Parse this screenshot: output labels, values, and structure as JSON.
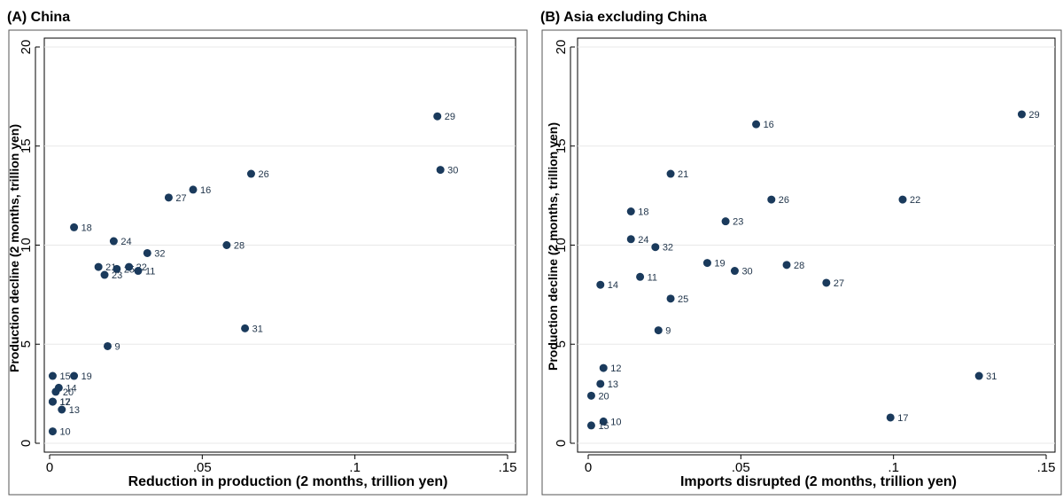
{
  "colors": {
    "marker": "#1a3a5c",
    "panel_border": "#555555",
    "gridline": "#e8e8e8",
    "text": "#000000",
    "axis": "#000000"
  },
  "chart_data": [
    {
      "type": "scatter",
      "title": "(A) China",
      "xlabel": "Reduction in production (2 months, trillion yen)",
      "ylabel": "Production decline (2 months, trillion yen)",
      "xlim": [
        0,
        0.15
      ],
      "ylim": [
        0,
        20
      ],
      "xticks": [
        0,
        0.05,
        0.1,
        0.15
      ],
      "xtick_labels": [
        "0",
        ".05",
        ".1",
        ".15"
      ],
      "yticks": [
        0,
        5,
        10,
        15,
        20
      ],
      "ytick_labels": [
        "0",
        "5",
        "10",
        "15",
        "20"
      ],
      "grid": "horizontal",
      "points": [
        {
          "label": "29",
          "x": 0.127,
          "y": 16.5
        },
        {
          "label": "30",
          "x": 0.128,
          "y": 13.8
        },
        {
          "label": "26",
          "x": 0.066,
          "y": 13.6
        },
        {
          "label": "16",
          "x": 0.047,
          "y": 12.8
        },
        {
          "label": "27",
          "x": 0.039,
          "y": 12.4
        },
        {
          "label": "18",
          "x": 0.008,
          "y": 10.9
        },
        {
          "label": "24",
          "x": 0.021,
          "y": 10.2
        },
        {
          "label": "28",
          "x": 0.058,
          "y": 10.0
        },
        {
          "label": "32",
          "x": 0.032,
          "y": 9.6
        },
        {
          "label": "21",
          "x": 0.016,
          "y": 8.9
        },
        {
          "label": "25",
          "x": 0.022,
          "y": 8.8
        },
        {
          "label": "22",
          "x": 0.026,
          "y": 8.9
        },
        {
          "label": "11",
          "x": 0.029,
          "y": 8.7
        },
        {
          "label": "23",
          "x": 0.018,
          "y": 8.5
        },
        {
          "label": "31",
          "x": 0.064,
          "y": 5.8
        },
        {
          "label": "9",
          "x": 0.019,
          "y": 4.9
        },
        {
          "label": "15",
          "x": 0.001,
          "y": 3.4
        },
        {
          "label": "19",
          "x": 0.008,
          "y": 3.4
        },
        {
          "label": "14",
          "x": 0.003,
          "y": 2.8
        },
        {
          "label": "20",
          "x": 0.002,
          "y": 2.6
        },
        {
          "label": "17",
          "x": 0.001,
          "y": 2.1
        },
        {
          "label": "12",
          "x": 0.001,
          "y": 2.1
        },
        {
          "label": "13",
          "x": 0.004,
          "y": 1.7
        },
        {
          "label": "10",
          "x": 0.001,
          "y": 0.6
        }
      ]
    },
    {
      "type": "scatter",
      "title": "(B) Asia excluding China",
      "xlabel": "Imports disrupted (2 months, trillion yen)",
      "ylabel": "Production decline (2 months, trillion yen)",
      "xlim": [
        0,
        0.15
      ],
      "ylim": [
        0,
        20
      ],
      "xticks": [
        0,
        0.05,
        0.1,
        0.15
      ],
      "xtick_labels": [
        "0",
        ".05",
        ".1",
        ".15"
      ],
      "yticks": [
        0,
        5,
        10,
        15,
        20
      ],
      "ytick_labels": [
        "0",
        "5",
        "10",
        "15",
        "20"
      ],
      "grid": "horizontal",
      "points": [
        {
          "label": "29",
          "x": 0.142,
          "y": 16.6
        },
        {
          "label": "16",
          "x": 0.055,
          "y": 16.1
        },
        {
          "label": "21",
          "x": 0.027,
          "y": 13.6
        },
        {
          "label": "22",
          "x": 0.103,
          "y": 12.3
        },
        {
          "label": "26",
          "x": 0.06,
          "y": 12.3
        },
        {
          "label": "18",
          "x": 0.014,
          "y": 11.7
        },
        {
          "label": "23",
          "x": 0.045,
          "y": 11.2
        },
        {
          "label": "24",
          "x": 0.014,
          "y": 10.3
        },
        {
          "label": "32",
          "x": 0.022,
          "y": 9.9
        },
        {
          "label": "19",
          "x": 0.039,
          "y": 9.1
        },
        {
          "label": "28",
          "x": 0.065,
          "y": 9.0
        },
        {
          "label": "30",
          "x": 0.048,
          "y": 8.7
        },
        {
          "label": "11",
          "x": 0.017,
          "y": 8.4
        },
        {
          "label": "27",
          "x": 0.078,
          "y": 8.1
        },
        {
          "label": "14",
          "x": 0.004,
          "y": 8.0
        },
        {
          "label": "25",
          "x": 0.027,
          "y": 7.3
        },
        {
          "label": "9",
          "x": 0.023,
          "y": 5.7
        },
        {
          "label": "12",
          "x": 0.005,
          "y": 3.8
        },
        {
          "label": "31",
          "x": 0.128,
          "y": 3.4
        },
        {
          "label": "13",
          "x": 0.004,
          "y": 3.0
        },
        {
          "label": "20",
          "x": 0.001,
          "y": 2.4
        },
        {
          "label": "17",
          "x": 0.099,
          "y": 1.3
        },
        {
          "label": "10",
          "x": 0.005,
          "y": 1.1
        },
        {
          "label": "15",
          "x": 0.001,
          "y": 0.9
        }
      ]
    }
  ]
}
